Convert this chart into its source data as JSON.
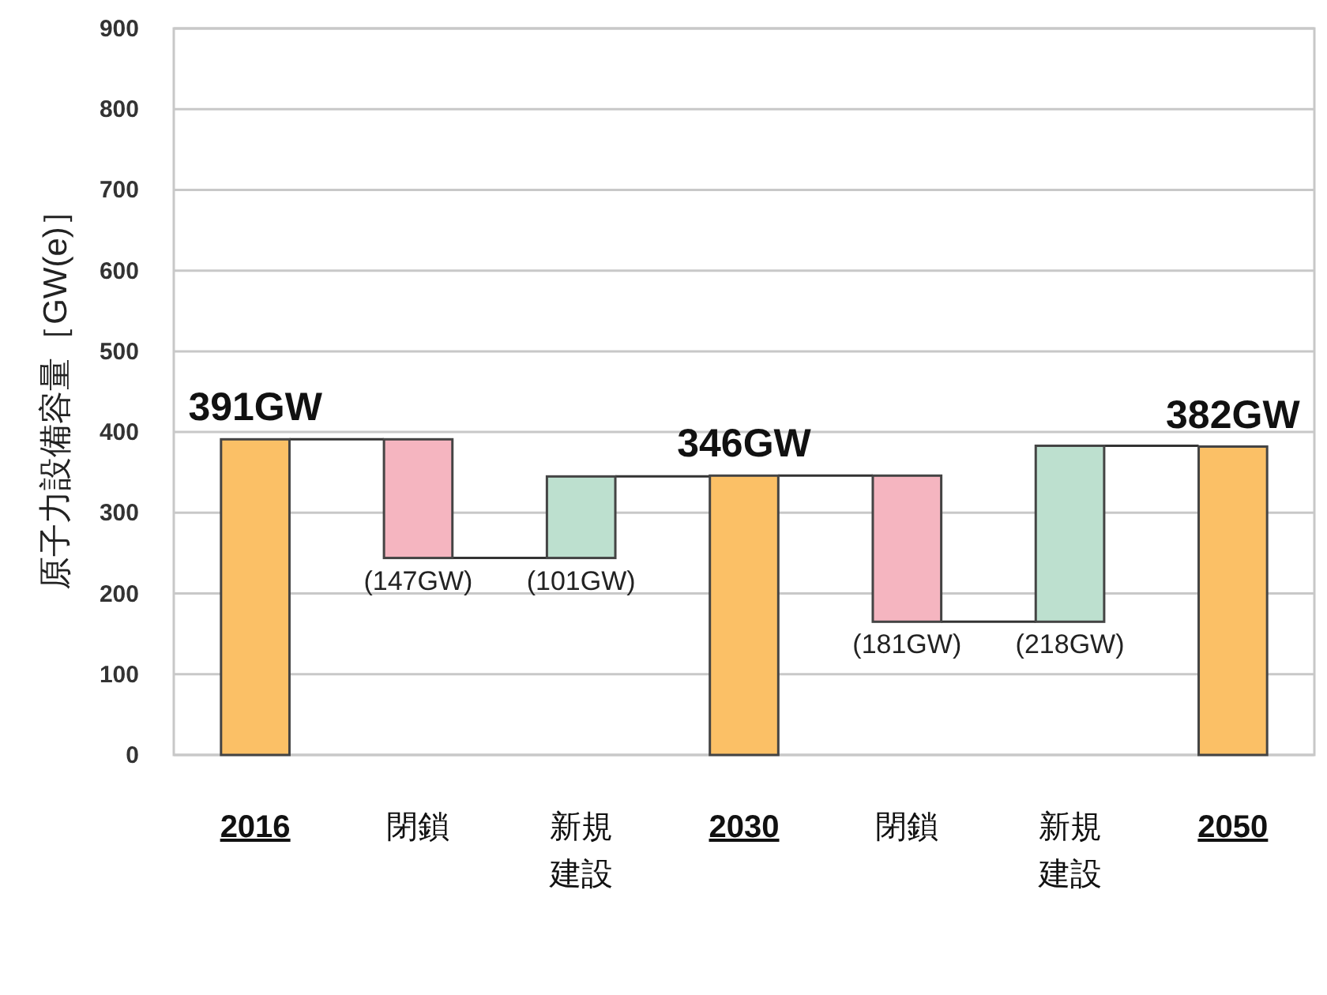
{
  "chart_data": {
    "type": "bar",
    "ylabel": "原子力設備容量［GW(e)］",
    "categories": [
      "2016",
      "閉鎖",
      "新規建設",
      "2030",
      "閉鎖",
      "新規建設",
      "2050"
    ],
    "values": [
      391,
      -147,
      101,
      346,
      -181,
      218,
      382
    ],
    "base": [
      0,
      391,
      244,
      0,
      346,
      165,
      0
    ],
    "colors": [
      "#fbc066",
      "#f5b5c0",
      "#bde0cf",
      "#fbc066",
      "#f5b5c0",
      "#bde0cf",
      "#fbc066"
    ],
    "value_labels": [
      "391GW",
      "(147GW)",
      "(101GW)",
      "346GW",
      "(181GW)",
      "(218GW)",
      "382GW"
    ],
    "ylim": [
      0,
      900
    ],
    "yticks": [
      0,
      100,
      200,
      300,
      400,
      500,
      600,
      700,
      800,
      900
    ],
    "grid": "y"
  }
}
